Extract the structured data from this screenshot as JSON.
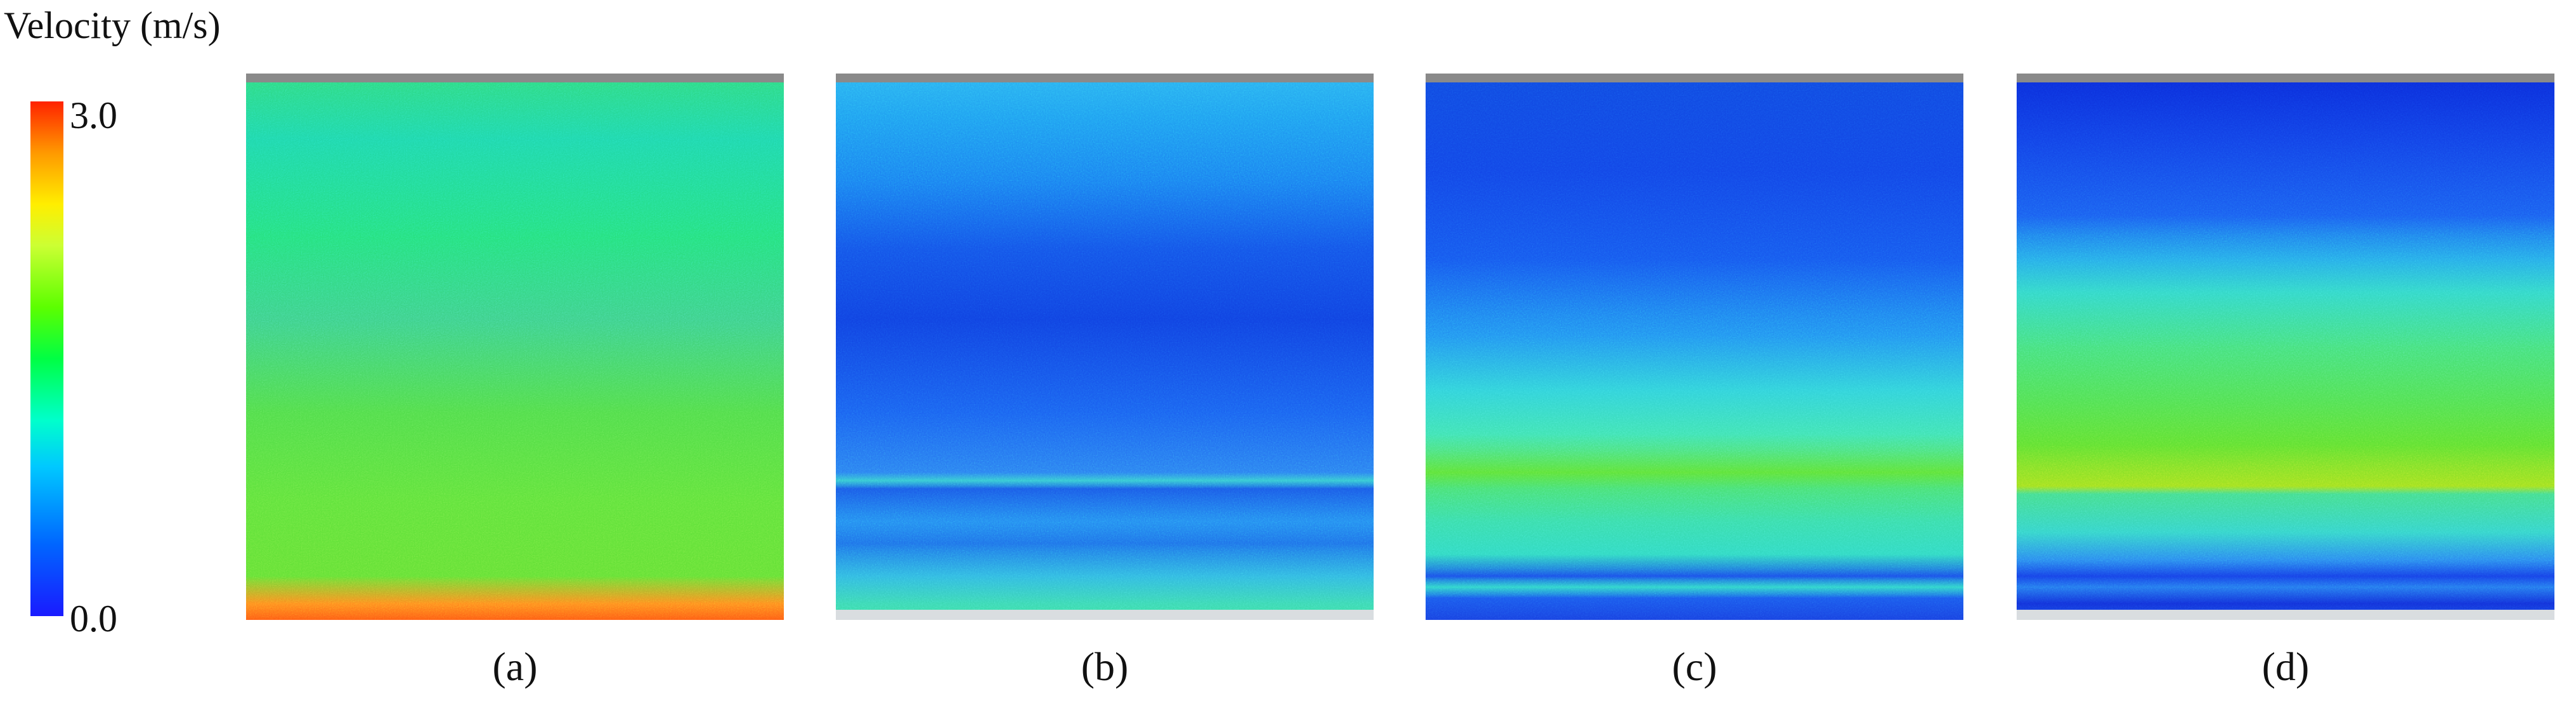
{
  "legend": {
    "title": "Velocity (m/s)",
    "max_label": "3.0",
    "min_label": "0.0",
    "colors": [
      "#1a1aff",
      "#00c8ff",
      "#00ff44",
      "#ffee00",
      "#ff2200"
    ]
  },
  "panels": [
    {
      "label": "(a)"
    },
    {
      "label": "(b)"
    },
    {
      "label": "(c)"
    },
    {
      "label": "(d)"
    }
  ]
}
